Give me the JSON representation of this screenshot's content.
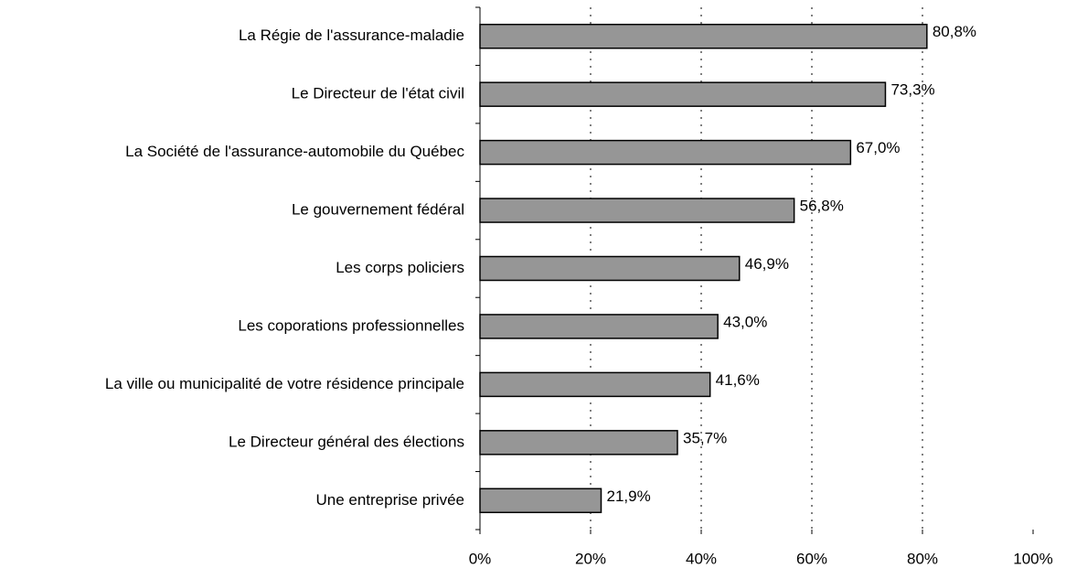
{
  "chart_data": {
    "type": "barh",
    "categories": [
      "La Régie de l'assurance-maladie",
      "Le Directeur de l'état civil",
      "La Société de l'assurance-automobile du Québec",
      "Le gouvernement fédéral",
      "Les corps policiers",
      "Les coporations professionnelles",
      "La ville ou municipalité de votre résidence principale",
      "Le Directeur général des élections",
      "Une entreprise privée"
    ],
    "values": [
      80.8,
      73.3,
      67.0,
      56.8,
      46.9,
      43.0,
      41.6,
      35.7,
      21.9
    ],
    "value_labels": [
      "80,8%",
      "73,3%",
      "67,0%",
      "56,8%",
      "46,9%",
      "43,0%",
      "41,6%",
      "35,7%",
      "21,9%"
    ],
    "color": "#969696",
    "xlim": [
      0,
      100
    ],
    "xticks": [
      {
        "value": 0,
        "label": "0%"
      },
      {
        "value": 20,
        "label": "20%"
      },
      {
        "value": 40,
        "label": "40%"
      },
      {
        "value": 60,
        "label": "60%"
      },
      {
        "value": 80,
        "label": "80%"
      },
      {
        "value": 100,
        "label": "100%"
      }
    ],
    "grid": true
  }
}
